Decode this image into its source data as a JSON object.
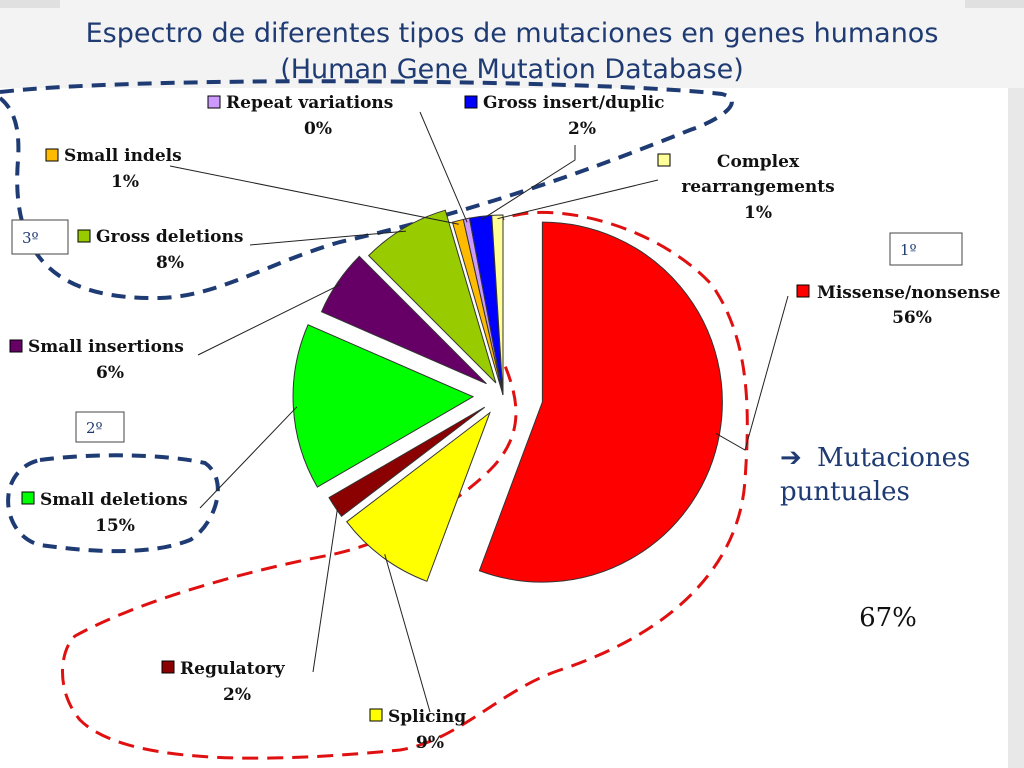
{
  "title_line1": "Espectro de diferentes tipos de mutaciones en genes humanos",
  "title_line2": "(Human Gene Mutation Database)",
  "rank_labels": {
    "first": "1º",
    "second": "2º",
    "third": "3º"
  },
  "note": {
    "line1": "Mutaciones",
    "line2": "puntuales"
  },
  "total_percent": "67%",
  "chart_data": {
    "type": "pie",
    "slices": [
      {
        "name": "Missense/nonsense",
        "value": 56,
        "label": "56%",
        "color": "#ff0000"
      },
      {
        "name": "Splicing",
        "value": 9,
        "label": "9%",
        "color": "#ffff00"
      },
      {
        "name": "Regulatory",
        "value": 2,
        "label": "2%",
        "color": "#8b0000"
      },
      {
        "name": "Small deletions",
        "value": 15,
        "label": "15%",
        "color": "#00ff00"
      },
      {
        "name": "Small insertions",
        "value": 6,
        "label": "6%",
        "color": "#660066"
      },
      {
        "name": "Gross deletions",
        "value": 8,
        "label": "8%",
        "color": "#99cc00"
      },
      {
        "name": "Small indels",
        "value": 1,
        "label": "1%",
        "color": "#ffbb00"
      },
      {
        "name": "Repeat variations",
        "value": 0,
        "label": "0%",
        "color": "#cc99ff"
      },
      {
        "name": "Gross insert/duplic",
        "value": 2,
        "label": "2%",
        "color": "#0000ff"
      },
      {
        "name": "Complex rearrangements",
        "value": 1,
        "label": "1%",
        "color": "#ffff99"
      }
    ]
  }
}
